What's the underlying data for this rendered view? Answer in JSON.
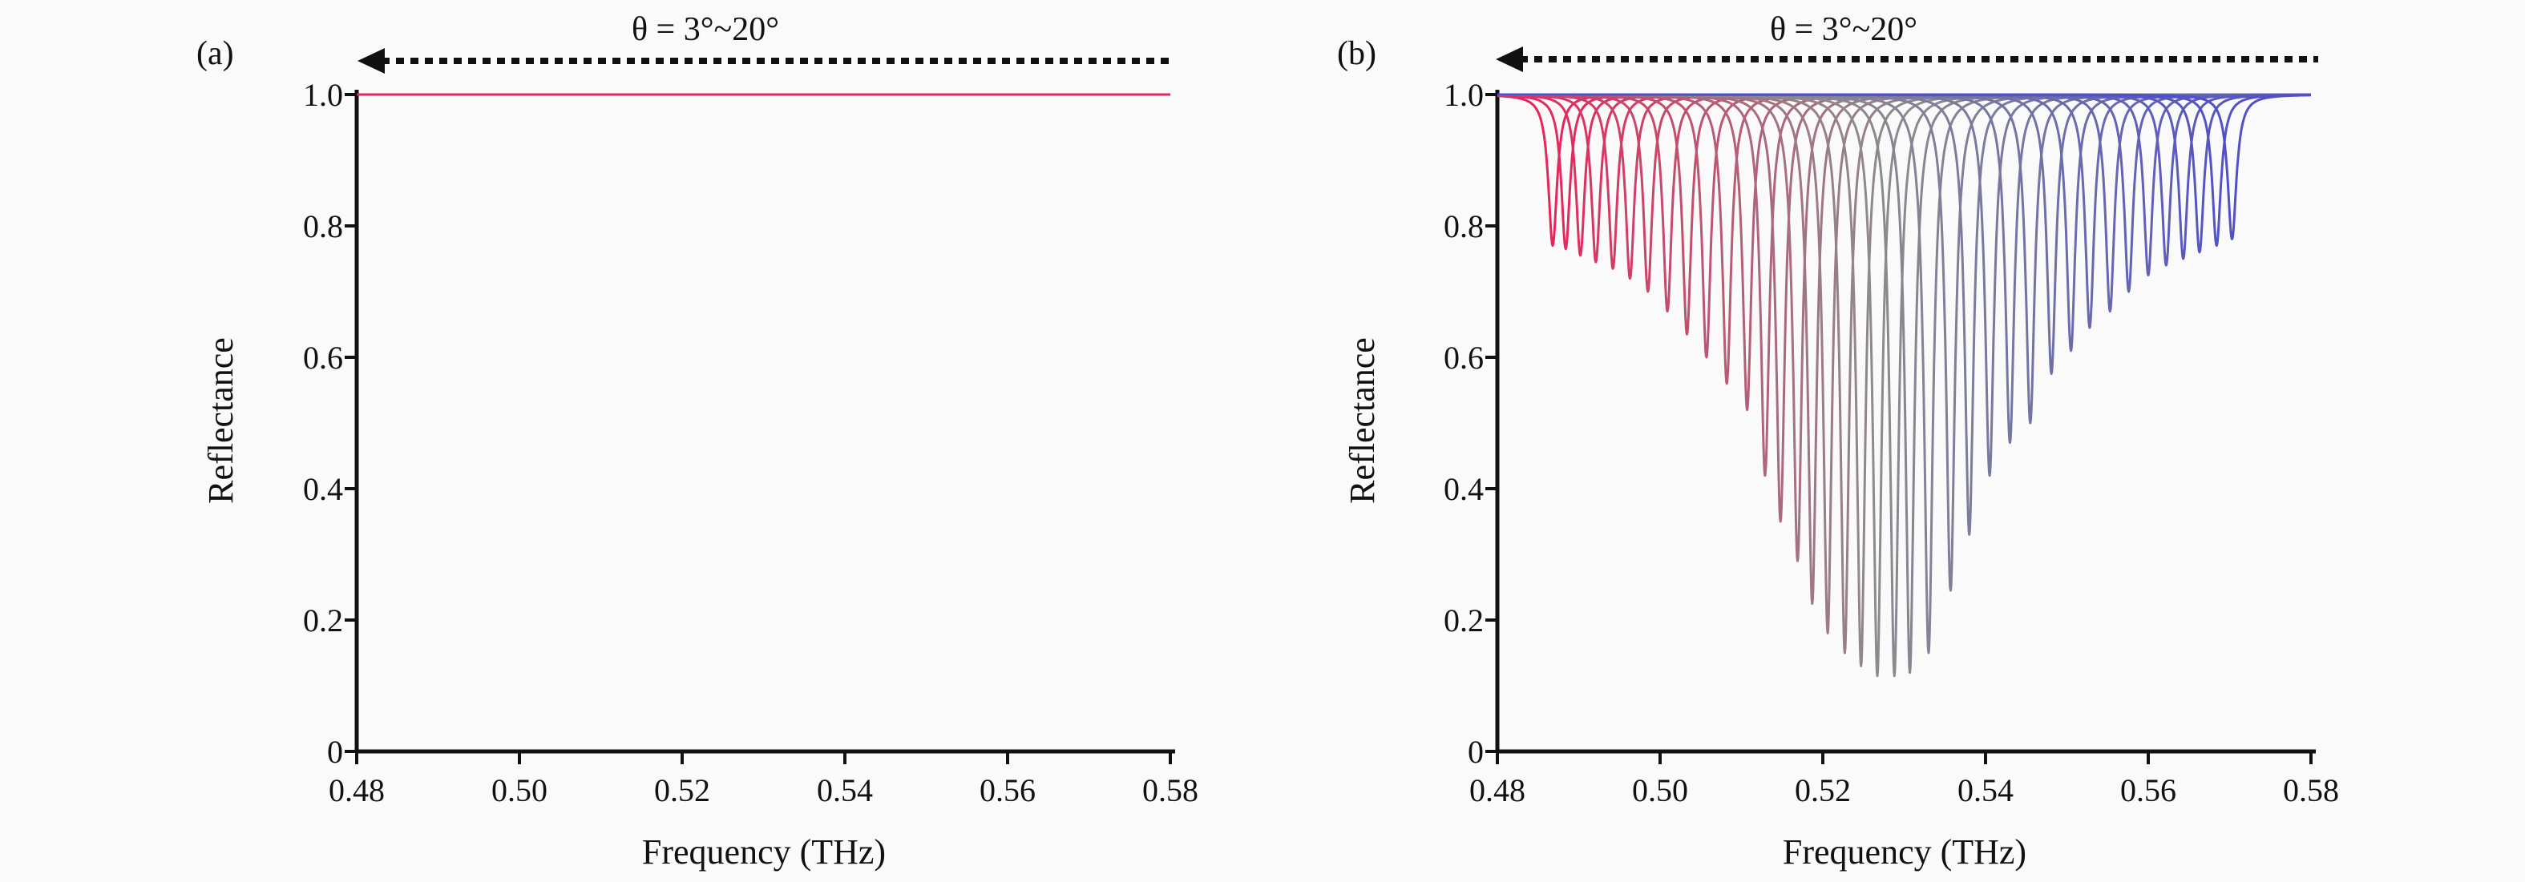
{
  "chart_data": [
    {
      "type": "line",
      "panel_label": "(a)",
      "annotation": {
        "text": "θ = 3°~20°",
        "arrow_direction": "left",
        "arrow_style": "dotted"
      },
      "xlabel": "Frequency (THz)",
      "ylabel": "Reflectance",
      "xlim": [
        0.48,
        0.58
      ],
      "ylim": [
        0,
        1.0
      ],
      "x_ticks": [
        "0.48",
        "0.50",
        "0.52",
        "0.54",
        "0.56",
        "0.58"
      ],
      "y_ticks": [
        "0",
        "0.2",
        "0.4",
        "0.6",
        "0.8",
        "1.0"
      ],
      "grid": false,
      "series": [
        {
          "color": "#e8245a",
          "x": [
            0.48,
            0.58
          ],
          "y": [
            1.0,
            1.0
          ]
        }
      ]
    },
    {
      "type": "line",
      "panel_label": "(b)",
      "annotation": {
        "text": "θ = 3°~20°",
        "arrow_direction": "left",
        "arrow_style": "dotted"
      },
      "xlabel": "Frequency (THz)",
      "ylabel": "Reflectance",
      "xlim": [
        0.48,
        0.58
      ],
      "ylim": [
        0,
        1.0
      ],
      "x_ticks": [
        "0.48",
        "0.50",
        "0.52",
        "0.54",
        "0.56",
        "0.58"
      ],
      "y_ticks": [
        "0",
        "0.2",
        "0.4",
        "0.6",
        "0.8",
        "1.0"
      ],
      "grid": false,
      "baseline": 1.0,
      "dip_color_stops": [
        "#e8245a",
        "#8c8c8c",
        "#5050c8"
      ],
      "dips": [
        {
          "x": 0.4868,
          "min": 0.77
        },
        {
          "x": 0.4884,
          "min": 0.765
        },
        {
          "x": 0.4902,
          "min": 0.755
        },
        {
          "x": 0.4921,
          "min": 0.745
        },
        {
          "x": 0.4942,
          "min": 0.735
        },
        {
          "x": 0.4963,
          "min": 0.72
        },
        {
          "x": 0.4985,
          "min": 0.7
        },
        {
          "x": 0.5009,
          "min": 0.67
        },
        {
          "x": 0.5033,
          "min": 0.635
        },
        {
          "x": 0.5057,
          "min": 0.6
        },
        {
          "x": 0.5082,
          "min": 0.56
        },
        {
          "x": 0.5107,
          "min": 0.52
        },
        {
          "x": 0.5129,
          "min": 0.42
        },
        {
          "x": 0.5148,
          "min": 0.35
        },
        {
          "x": 0.5169,
          "min": 0.29
        },
        {
          "x": 0.5187,
          "min": 0.225
        },
        {
          "x": 0.5206,
          "min": 0.18
        },
        {
          "x": 0.5227,
          "min": 0.15
        },
        {
          "x": 0.5247,
          "min": 0.13
        },
        {
          "x": 0.5267,
          "min": 0.115
        },
        {
          "x": 0.5288,
          "min": 0.115
        },
        {
          "x": 0.5307,
          "min": 0.12
        },
        {
          "x": 0.533,
          "min": 0.15
        },
        {
          "x": 0.5357,
          "min": 0.245
        },
        {
          "x": 0.538,
          "min": 0.33
        },
        {
          "x": 0.5405,
          "min": 0.42
        },
        {
          "x": 0.543,
          "min": 0.47
        },
        {
          "x": 0.5455,
          "min": 0.5
        },
        {
          "x": 0.5481,
          "min": 0.575
        },
        {
          "x": 0.5505,
          "min": 0.61
        },
        {
          "x": 0.5528,
          "min": 0.645
        },
        {
          "x": 0.5553,
          "min": 0.67
        },
        {
          "x": 0.5576,
          "min": 0.7
        },
        {
          "x": 0.56,
          "min": 0.725
        },
        {
          "x": 0.5622,
          "min": 0.74
        },
        {
          "x": 0.5643,
          "min": 0.75
        },
        {
          "x": 0.5663,
          "min": 0.76
        },
        {
          "x": 0.5684,
          "min": 0.77
        },
        {
          "x": 0.5703,
          "min": 0.78
        }
      ]
    }
  ]
}
